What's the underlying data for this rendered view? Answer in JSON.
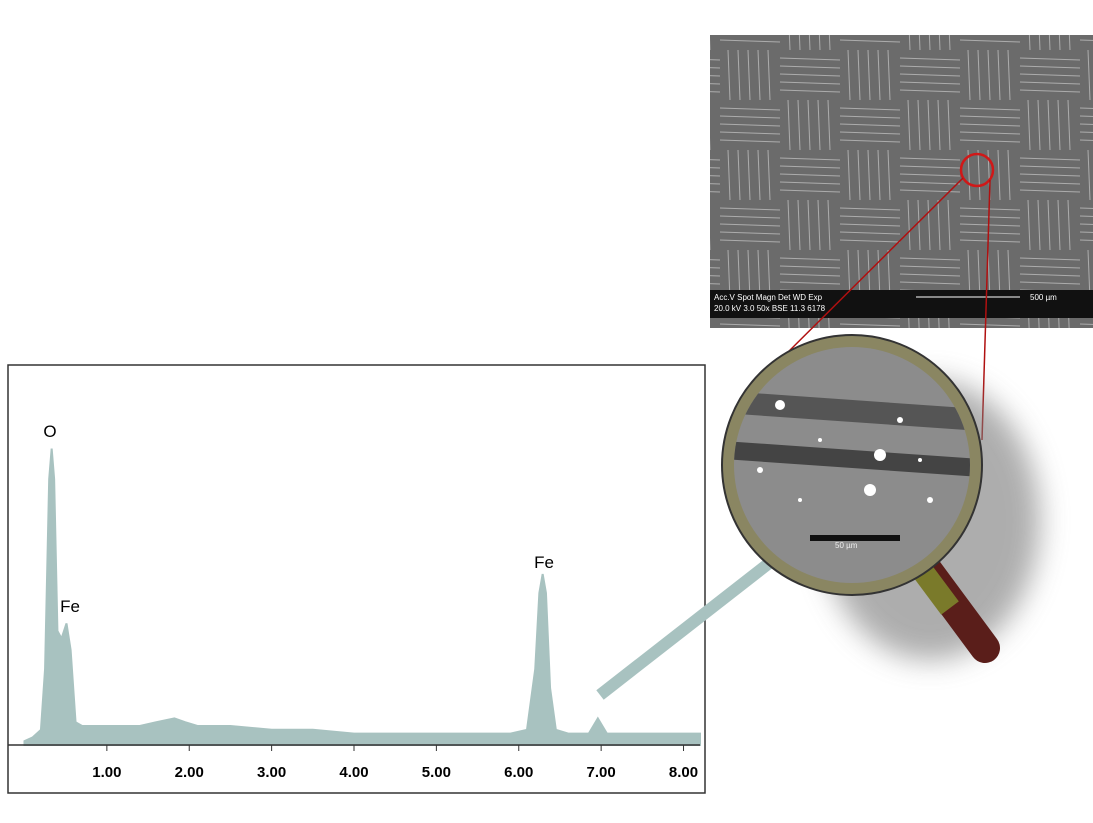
{
  "chart_data": {
    "type": "area",
    "x": [
      0,
      0.1,
      0.2,
      0.25,
      0.3,
      0.33,
      0.36,
      0.4,
      0.45,
      0.51,
      0.56,
      0.62,
      0.7,
      1.0,
      1.4,
      1.6,
      1.82,
      1.95,
      2.1,
      2.5,
      3,
      3.5,
      4,
      4.5,
      5,
      5.5,
      5.9,
      6.1,
      6.2,
      6.25,
      6.29,
      6.33,
      6.38,
      6.45,
      6.6,
      6.85,
      6.96,
      7.07,
      7.3,
      7.8,
      8.2
    ],
    "values": [
      1,
      2,
      4,
      20,
      70,
      78,
      70,
      30,
      28,
      32,
      25,
      6,
      5,
      5,
      5,
      6,
      7,
      6,
      5,
      5,
      4,
      4,
      3,
      3,
      3,
      3,
      3,
      4,
      20,
      40,
      45,
      40,
      15,
      4,
      3,
      3,
      7,
      3,
      3,
      3,
      3
    ],
    "color": "#a8c2c0",
    "xlim": [
      -0.2,
      8.2
    ],
    "ylim": [
      0,
      100
    ],
    "xticks": [
      {
        "value": 1,
        "label": "1.00"
      },
      {
        "value": 2,
        "label": "2.00"
      },
      {
        "value": 3,
        "label": "3.00"
      },
      {
        "value": 4,
        "label": "4.00"
      },
      {
        "value": 5,
        "label": "5.00"
      },
      {
        "value": 6,
        "label": "6.00"
      },
      {
        "value": 7,
        "label": "7.00"
      },
      {
        "value": 8,
        "label": "8.00"
      }
    ],
    "peak_labels": [
      "O",
      "Fe",
      "Fe"
    ]
  },
  "micrograph": {
    "info_header": "Acc.V  Spot Magn    Det  WD  Exp",
    "info_values": "20.0 kV 3.0   50x    BSE 11.3 6178",
    "scale_bar": "500 µm",
    "zoom_scale_bar": "50 µm"
  }
}
